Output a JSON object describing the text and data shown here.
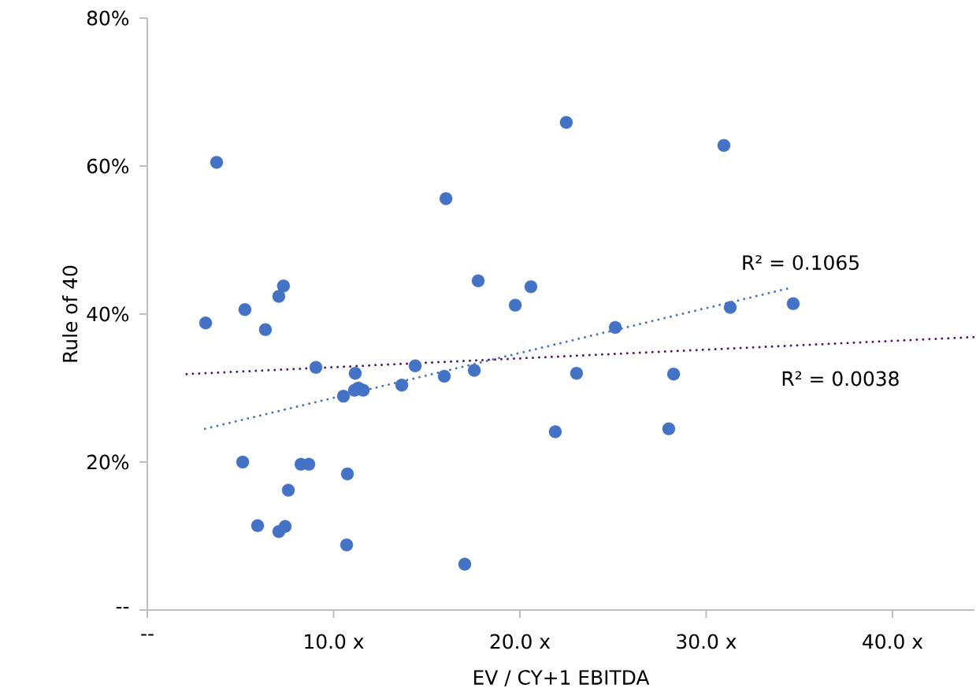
{
  "chart_data": {
    "type": "scatter",
    "xlabel": "EV / CY+1 EBITDA",
    "ylabel": "Rule of 40",
    "xlim": [
      0,
      44.4
    ],
    "ylim": [
      0,
      80
    ],
    "xticks": [
      {
        "value": 0,
        "label": "--"
      },
      {
        "value": 10,
        "label": "10.0 x"
      },
      {
        "value": 20,
        "label": "20.0 x"
      },
      {
        "value": 30,
        "label": "30.0 x"
      },
      {
        "value": 40,
        "label": "40.0 x"
      }
    ],
    "yticks": [
      {
        "value": 0,
        "label": "--"
      },
      {
        "value": 20,
        "label": "20%"
      },
      {
        "value": 40,
        "label": "40%"
      },
      {
        "value": 60,
        "label": "60%"
      },
      {
        "value": 80,
        "label": "80%"
      }
    ],
    "grid": false,
    "series": [
      {
        "color": "#4472c4",
        "marker": "circle",
        "x": [
          3.72,
          3.13,
          5.24,
          6.34,
          7.06,
          7.31,
          5.12,
          5.92,
          7.06,
          7.4,
          7.57,
          8.25,
          8.67,
          9.05,
          10.53,
          10.74,
          10.7,
          11.16,
          11.12,
          11.33,
          11.59,
          13.66,
          14.38,
          15.94,
          16.03,
          17.04,
          17.55,
          17.76,
          19.75,
          20.59,
          21.9,
          22.49,
          23.04,
          25.12,
          27.99,
          28.25,
          30.95,
          31.29,
          34.67
        ],
        "values": [
          60.5,
          38.8,
          40.6,
          37.9,
          42.4,
          43.8,
          20.0,
          11.4,
          10.6,
          11.3,
          16.2,
          19.7,
          19.7,
          32.8,
          28.9,
          18.4,
          8.8,
          32.0,
          29.7,
          30.0,
          29.7,
          30.4,
          33.0,
          31.6,
          55.6,
          6.2,
          32.4,
          44.5,
          41.2,
          43.7,
          24.1,
          65.9,
          32.0,
          38.2,
          24.5,
          31.9,
          62.8,
          40.9,
          41.4
        ]
      },
      {
        "type": "line",
        "color": "#4472c4",
        "marker": "none",
        "line_style": "dotted",
        "x": [
          3.1,
          34.6
        ],
        "values": [
          24.5,
          43.6
        ]
      },
      {
        "type": "line",
        "color": "#5c0f7c",
        "marker": "none",
        "line_style": "dotted",
        "x": [
          2.11,
          44.4
        ],
        "values": [
          31.9,
          36.9
        ]
      }
    ],
    "annotations": [
      "R² = 0.1065",
      "R² = 0.0038"
    ]
  }
}
